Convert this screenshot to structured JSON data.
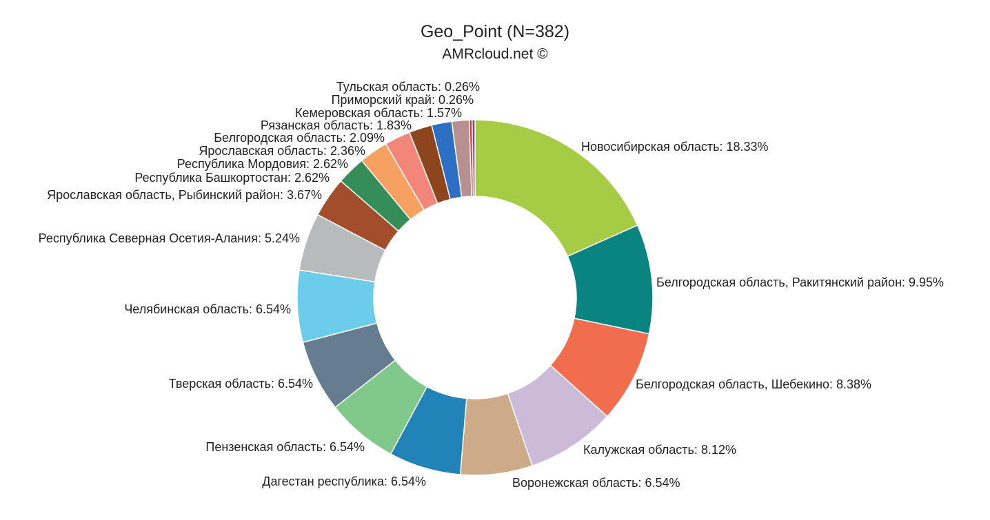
{
  "chart_data": {
    "type": "pie",
    "donut": true,
    "title": "Geo_Point (N=382)",
    "subtitle": "AMRcloud.net ©",
    "label_format": "{label}: {value}%",
    "legend": "none",
    "slices": [
      {
        "label": "Новосибирская область",
        "value": 18.33,
        "color": "#a6cb44"
      },
      {
        "label": "Белгородская область, Ракитянский район",
        "value": 9.95,
        "color": "#098480"
      },
      {
        "label": "Белгородская область, Шебекино",
        "value": 8.38,
        "color": "#f16d4d"
      },
      {
        "label": "Калужская область",
        "value": 8.12,
        "color": "#ccbad9"
      },
      {
        "label": "Воронежская область",
        "value": 6.54,
        "color": "#cdab89"
      },
      {
        "label": "Дагестан республика",
        "value": 6.54,
        "color": "#2283b9"
      },
      {
        "label": "Пензенская область",
        "value": 6.54,
        "color": "#81c98a"
      },
      {
        "label": "Тверская область",
        "value": 6.54,
        "color": "#667c8f"
      },
      {
        "label": "Челябинская область",
        "value": 6.54,
        "color": "#6ccdeb"
      },
      {
        "label": "Республика Северная Осетия-Алания",
        "value": 5.24,
        "color": "#b7bbbc"
      },
      {
        "label": "Ярославская область, Рыбинский район",
        "value": 3.67,
        "color": "#a24e2d"
      },
      {
        "label": "Республика Башкортостан",
        "value": 2.62,
        "color": "#358d57"
      },
      {
        "label": "Республика Мордовия",
        "value": 2.62,
        "color": "#f6a062"
      },
      {
        "label": "Ярославская область",
        "value": 2.36,
        "color": "#f3867a"
      },
      {
        "label": "Белгородская область",
        "value": 2.09,
        "color": "#8c451c"
      },
      {
        "label": "Рязанская область",
        "value": 1.83,
        "color": "#2d6fc3"
      },
      {
        "label": "Кемеровская область",
        "value": 1.57,
        "color": "#b89092"
      },
      {
        "label": "Приморский край",
        "value": 0.26,
        "color": "#e53228"
      },
      {
        "label": "Тульская область",
        "value": 0.26,
        "color": "#7b3d8f"
      }
    ]
  }
}
